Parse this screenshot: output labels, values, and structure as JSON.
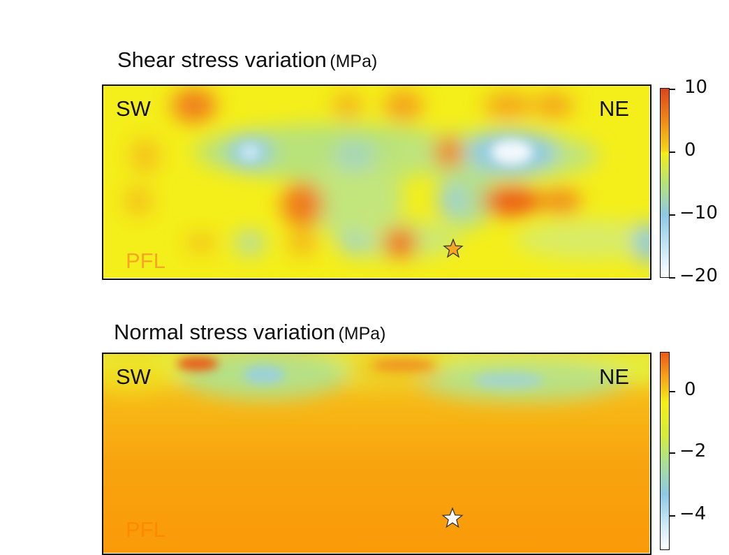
{
  "chart_data": [
    {
      "type": "heatmap",
      "title": "Shear stress variation",
      "unit": "(MPa)",
      "corner_labels": {
        "left": "SW",
        "right": "NE"
      },
      "fault_label": "PFL",
      "colorbar": {
        "ticks": [
          "10",
          "0",
          "−10",
          "−20"
        ],
        "range": [
          -20,
          10
        ]
      },
      "colors": {
        "fault_label": "#f5a623",
        "star": "#f5a623"
      }
    },
    {
      "type": "heatmap",
      "title": "Normal stress variation",
      "unit": "(MPa)",
      "corner_labels": {
        "left": "SW",
        "right": "NE"
      },
      "fault_label": "PFL",
      "colorbar": {
        "ticks": [
          "0",
          "−2",
          "−4"
        ],
        "range": [
          -5,
          1
        ]
      },
      "colors": {
        "fault_label": "#ff8a00",
        "star": "#ffffff"
      }
    }
  ]
}
